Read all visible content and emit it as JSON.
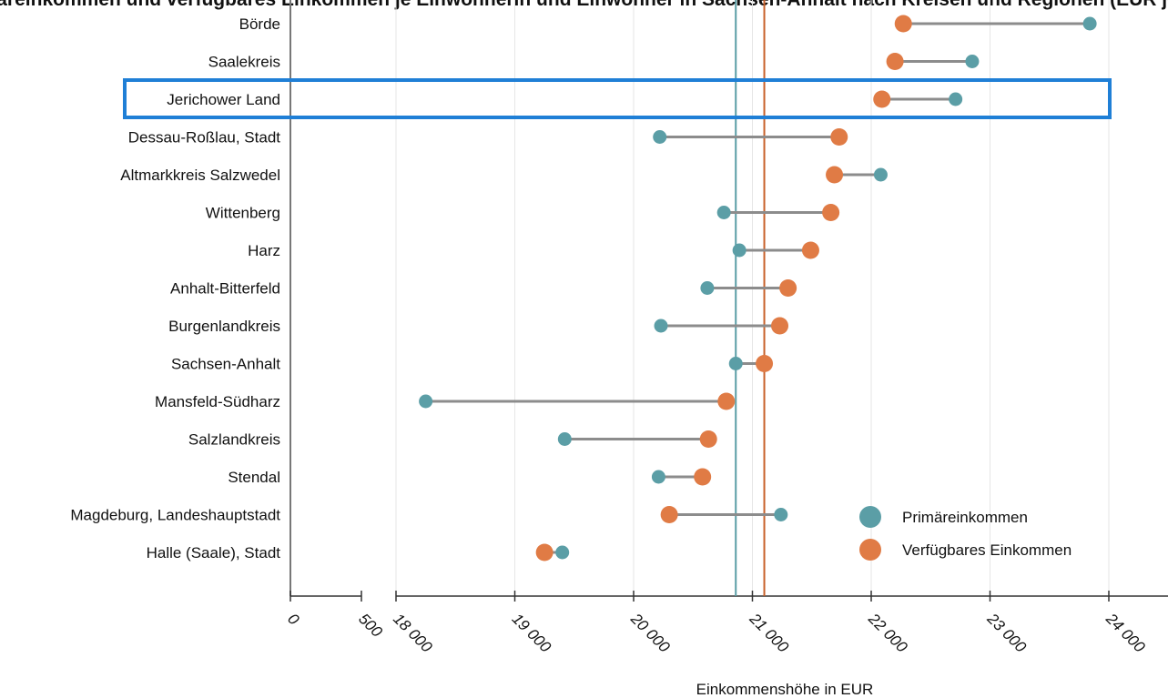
{
  "chart_data": {
    "type": "dumbbell",
    "title": "Primäreinkommen und verfügbares Einkommen je Einwohnerin und Einwohner in Sachsen-Anhalt nach Kreisen und Regionen (EUR je Kopf)",
    "xlabel": "Einkommenshöhe in EUR",
    "ylabel": "",
    "xlim": [
      0,
      24000
    ],
    "axis_break": [
      500,
      18000
    ],
    "x_ticks": [
      {
        "value": 0,
        "label": "0"
      },
      {
        "value": 500,
        "label": "500"
      },
      {
        "value": 18000,
        "label": "18 000"
      },
      {
        "value": 19000,
        "label": "19 000"
      },
      {
        "value": 20000,
        "label": "20 000"
      },
      {
        "value": 21000,
        "label": "21 000"
      },
      {
        "value": 22000,
        "label": "22 000"
      },
      {
        "value": 23000,
        "label": "23 000"
      },
      {
        "value": 24000,
        "label": "24 000"
      }
    ],
    "grid": true,
    "legend_position": "bottom-right",
    "highlighted_category": "Jerichower Land",
    "highlight_color": "#1f7fd6",
    "categories": [
      "Börde",
      "Saalekreis",
      "Jerichower Land",
      "Dessau-Roßlau, Stadt",
      "Altmarkkreis Salzwedel",
      "Wittenberg",
      "Harz",
      "Anhalt-Bitterfeld",
      "Burgenlandkreis",
      "Sachsen-Anhalt",
      "Mansfeld-Südharz",
      "Salzlandkreis",
      "Stendal",
      "Magdeburg, Landeshauptstadt",
      "Halle (Saale), Stadt"
    ],
    "series": [
      {
        "name": "Primäreinkommen",
        "color": "#5b9ea6",
        "values": [
          23840,
          22850,
          22710,
          20220,
          22080,
          20760,
          20890,
          20620,
          20230,
          20860,
          18250,
          19420,
          20210,
          21240,
          19400
        ]
      },
      {
        "name": "Verfügbares Einkommen",
        "color": "#e07b45",
        "values": [
          22270,
          22200,
          22090,
          21730,
          21690,
          21660,
          21490,
          21300,
          21230,
          21100,
          20780,
          20630,
          20580,
          20300,
          19250
        ]
      }
    ],
    "reference_lines": [
      {
        "series": "Primäreinkommen",
        "value": 20860,
        "color": "#5b9ea6"
      },
      {
        "series": "Verfügbares Einkommen",
        "value": 21100,
        "color": "#c8602a"
      }
    ]
  }
}
